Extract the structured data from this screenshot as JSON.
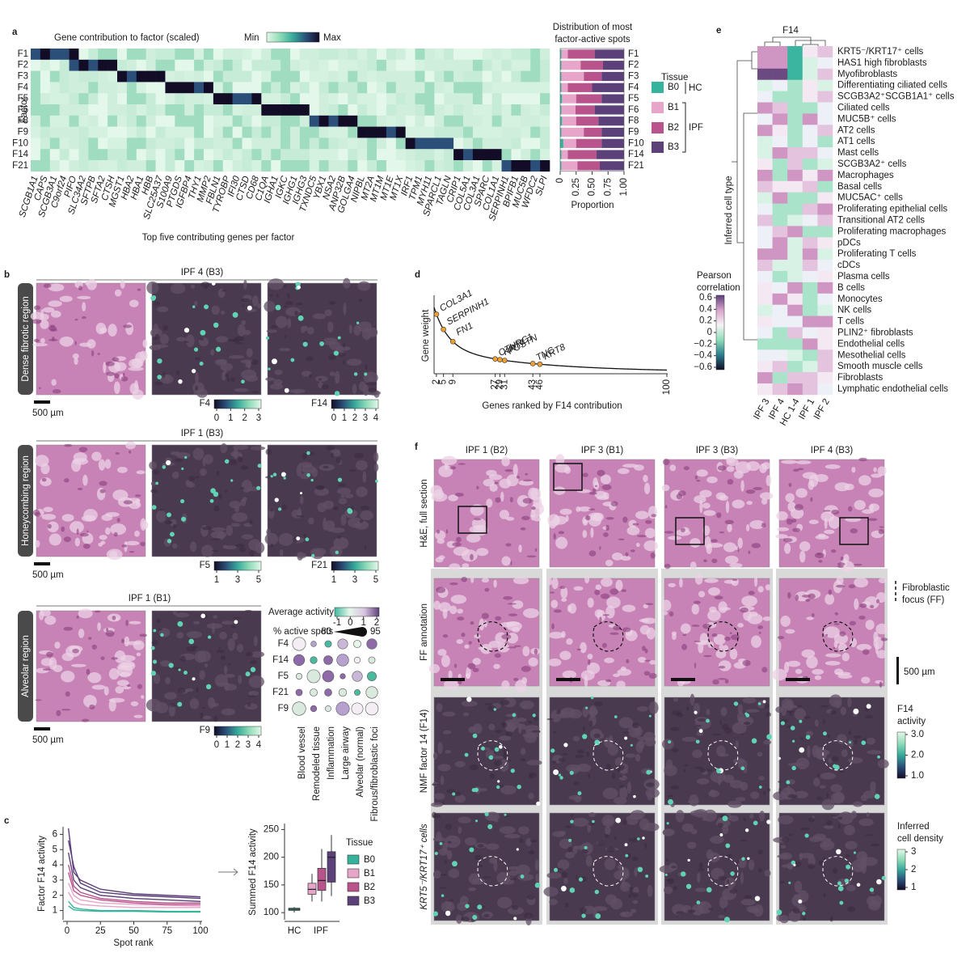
{
  "panel_labels": [
    "a",
    "b",
    "c",
    "d",
    "e",
    "f"
  ],
  "a": {
    "heatmap_title": "Gene contribution to factor (scaled)",
    "scale_min": "Min",
    "scale_max": "Max",
    "y_label": "Factor",
    "x_label": "Top five contributing genes per factor",
    "factors": [
      "F1",
      "F2",
      "F3",
      "F4",
      "F5",
      "F6",
      "F8",
      "F9",
      "F10",
      "F14",
      "F21"
    ],
    "genes": [
      "SCGB1A1",
      "CAPS",
      "SCGB3A1",
      "C9orf24",
      "PIFO",
      "SLC34A2",
      "SFTPB",
      "SFTA2",
      "CTSH",
      "MGST1",
      "HBA2",
      "HBA1",
      "HBB",
      "SLC25A37",
      "S100A9",
      "PTGDS",
      "IGFBP4",
      "THY1",
      "MMP2",
      "FBLN1",
      "TYROBP",
      "IFI30",
      "CTSD",
      "CD68",
      "C1QA",
      "IGHA1",
      "IGKC",
      "IGHG1",
      "IGHG3",
      "TXNDC5",
      "YBX1",
      "NSA2",
      "ANP32B",
      "GOLGA4",
      "NIPBL",
      "MT2A",
      "MT1M",
      "MT1E",
      "MT1X",
      "IRF1",
      "TPM1",
      "MYH11",
      "SPARCL1",
      "TAGLN",
      "CRIP1",
      "COL5A1",
      "COL3A1",
      "SPARC",
      "COL1A1",
      "SERPINH1",
      "BPIFB1",
      "MUC5B",
      "WFDC2",
      "SLPI"
    ],
    "distribution": {
      "type": "bar",
      "stacked": true,
      "title": [
        "Distribution of most",
        "factor-active spots"
      ],
      "x_label": "Proportion",
      "xlim": [
        0,
        1
      ],
      "xticks": [
        0,
        0.25,
        {
          "value": 0.5,
          "label": "0.50"
        },
        0.75,
        {
          "value": 1,
          "label": "1.00"
        }
      ],
      "series": [
        {
          "name": "B0",
          "color": "#36b39d",
          "values": [
            0.02,
            0.02,
            0.02,
            0.02,
            0.03,
            0.02,
            0.03,
            0.02,
            0.05,
            0.02,
            0.02
          ]
        },
        {
          "name": "B1",
          "color": "#e6a5c9",
          "values": [
            0.1,
            0.3,
            0.35,
            0.1,
            0.22,
            0.22,
            0.22,
            0.35,
            0.2,
            0.1,
            0.25
          ]
        },
        {
          "name": "B2",
          "color": "#b8548b",
          "values": [
            0.42,
            0.35,
            0.28,
            0.38,
            0.4,
            0.3,
            0.35,
            0.28,
            0.4,
            0.45,
            0.35
          ]
        },
        {
          "name": "B3",
          "color": "#5b4079",
          "values": [
            0.46,
            0.33,
            0.35,
            0.5,
            0.35,
            0.46,
            0.4,
            0.35,
            0.35,
            0.43,
            0.38
          ]
        }
      ]
    },
    "legend": {
      "title": "Tissue",
      "groups": [
        "HC",
        "IPF"
      ]
    }
  },
  "b": {
    "sections": [
      {
        "title": "IPF 4 (B3)",
        "region": "Dense fibrotic region",
        "scale": "500 µm",
        "bars": [
          {
            "name": "F4",
            "ticks": [
              0,
              1,
              2,
              3
            ]
          },
          {
            "name": "F14",
            "ticks": [
              0,
              1,
              2,
              3,
              4
            ]
          }
        ]
      },
      {
        "title": "IPF 1 (B3)",
        "region": "Honeycombing region",
        "scale": "500 µm",
        "bars": [
          {
            "name": "F5",
            "ticks": [
              1,
              3,
              5
            ]
          },
          {
            "name": "F21",
            "ticks": [
              1,
              3,
              5
            ]
          }
        ]
      },
      {
        "title": "IPF 1 (B1)",
        "region": "Alveolar region",
        "scale": "500 µm",
        "bars": [
          {
            "name": "F9",
            "ticks": [
              0,
              1,
              2,
              3,
              4
            ]
          }
        ]
      }
    ],
    "dotplot": {
      "color_title": "Average activity",
      "color_ticks": [
        -1,
        0,
        1,
        2
      ],
      "size_title": "% active spots",
      "size_ticks": [
        80,
        95
      ],
      "rows": [
        "F4",
        "F14",
        "F5",
        "F21",
        "F9"
      ],
      "columns": [
        "Blood vessel",
        "Remodeled tissue",
        "Inflammation",
        "Large airway",
        "Alveolar (normal)",
        "Fibrous/fibroblastic foci"
      ]
    }
  },
  "c": {
    "line": {
      "y_label": "Factor F14 activity",
      "x_label": "Spot rank",
      "x": [
        1,
        5,
        10,
        25,
        50,
        75,
        100
      ],
      "xlim": [
        0,
        100
      ],
      "xticks": [
        0,
        25,
        50,
        75,
        100
      ],
      "ylim": [
        0.5,
        6.5
      ],
      "yticks": [
        1,
        2,
        3,
        4,
        5,
        6
      ]
    },
    "box": {
      "y_label": "Summed F14 activity",
      "categories": [
        "HC",
        "IPF"
      ],
      "ylim": [
        90,
        255
      ],
      "yticks": [
        100,
        150,
        200,
        250
      ]
    },
    "legend_title": "Tissue",
    "series": [
      {
        "name": "B0",
        "color": "#36b39d",
        "lines": [
          [
            1.6,
            1.2,
            1.1,
            1.0,
            1.0,
            0.95,
            0.95
          ],
          [
            1.3,
            1.05,
            1.0,
            0.95,
            0.95,
            0.9,
            0.9
          ]
        ],
        "box": [
          100,
          104,
          106,
          108,
          110
        ]
      },
      {
        "name": "B1",
        "color": "#e6a5c9",
        "lines": [
          [
            2.8,
            2.0,
            1.7,
            1.5,
            1.4,
            1.35,
            1.3
          ],
          [
            2.2,
            1.6,
            1.4,
            1.3,
            1.2,
            1.2,
            1.2
          ]
        ],
        "box": [
          120,
          133,
          142,
          153,
          170
        ]
      },
      {
        "name": "B2",
        "color": "#b8548b",
        "lines": [
          [
            4.0,
            2.6,
            2.2,
            1.8,
            1.6,
            1.5,
            1.5
          ],
          [
            3.5,
            2.3,
            2.0,
            1.7,
            1.5,
            1.4,
            1.4
          ]
        ],
        "box": [
          120,
          140,
          158,
          180,
          215
        ]
      },
      {
        "name": "B3",
        "color": "#5b4079",
        "lines": [
          [
            6.4,
            3.5,
            3.0,
            2.4,
            2.1,
            2.0,
            1.9
          ],
          [
            5.6,
            3.9,
            2.8,
            2.2,
            2.0,
            1.9,
            1.8
          ],
          [
            4.8,
            3.0,
            2.5,
            2.0,
            1.8,
            1.7,
            1.6
          ]
        ],
        "box": [
          130,
          155,
          200,
          210,
          240
        ]
      }
    ]
  },
  "d": {
    "y_label": "Gene weight",
    "x_label": "Genes ranked by F14 contribution",
    "xlim": [
      1,
      100
    ],
    "xticks": [
      2,
      5,
      9,
      27,
      29,
      31,
      43,
      46,
      100
    ],
    "genes": [
      "COL3A1",
      "SERPINH1",
      "FN1",
      "CTHRC1",
      "KRT7",
      "POSTN",
      "TNC",
      "KRT8"
    ],
    "ranks": [
      2,
      5,
      9,
      27,
      29,
      31,
      43,
      46
    ]
  },
  "e": {
    "title": "F14",
    "y_label": "Inferred cell type",
    "cell_types": [
      "KRT5⁻/KRT17⁺ cells",
      "HAS1 high fibroblasts",
      "Myofibroblasts",
      "Differentiating ciliated cells",
      "SCGB3A2⁺SCGB1A1⁺ cells",
      "Ciliated cells",
      "MUC5B⁺ cells",
      "AT2 cells",
      "AT1 cells",
      "Mast cells",
      "SCGB3A2⁺ cells",
      "Macrophages",
      "Basal cells",
      "MUC5AC⁺ cells",
      "Proliferating epithelial cells",
      "Transitional AT2 cells",
      "Proliferating macrophages",
      "pDCs",
      "Proliferating T cells",
      "cDCs",
      "Plasma cells",
      "B cells",
      "Monocytes",
      "NK cells",
      "T cells",
      "PLIN2⁺ fibroblasts",
      "Endothelial cells",
      "Mesothelial cells",
      "Smooth muscle cells",
      "Fibroblasts",
      "Lymphatic endothelial cells"
    ],
    "columns": [
      "IPF 3",
      "IPF 4",
      "HC 1-4",
      "IPF 1",
      "IPF 2"
    ],
    "legend": {
      "title": [
        "Pearson",
        "correlation"
      ],
      "ticks": [
        0.6,
        0.4,
        0.2,
        0,
        {
          "value": -0.2,
          "label": "−0.2"
        },
        {
          "value": -0.4,
          "label": "−0.4"
        },
        {
          "value": -0.6,
          "label": "−0.6"
        }
      ]
    }
  },
  "f": {
    "columns": [
      "IPF 1 (B2)",
      "IPF 3 (B1)",
      "IPF 3 (B3)",
      "IPF 4 (B3)"
    ],
    "rows": [
      "H&E, full section",
      "FF annotation",
      "NMF factor 14 (F14)",
      "KRT5⁻/KRT17⁺ cells"
    ],
    "ff_legend": [
      "Fibroblastic",
      "focus (FF)"
    ],
    "scale": "500 µm",
    "activity": {
      "title": [
        "F14",
        "activity"
      ],
      "ticks": [
        {
          "value": 3,
          "label": "3.0"
        },
        {
          "value": 2,
          "label": "2.0"
        },
        {
          "value": 1,
          "label": "1.0"
        }
      ]
    },
    "density": {
      "title": [
        "Inferred",
        "cell density"
      ],
      "ticks": [
        3,
        2,
        1
      ]
    }
  }
}
